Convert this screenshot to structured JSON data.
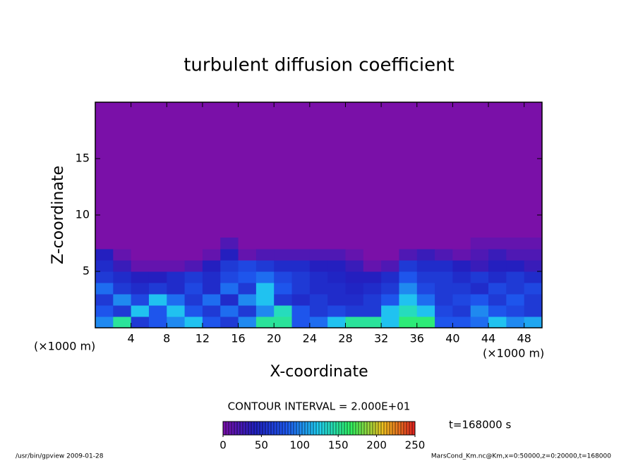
{
  "chart_data": {
    "type": "heatmap",
    "title": "turbulent diffusion coefficient",
    "x_label": "X-coordinate",
    "y_label": "Z-coordinate",
    "x_unit": "(×1000 m)",
    "xlim": [
      0,
      50
    ],
    "ylim": [
      0,
      20
    ],
    "xticks": [
      4,
      8,
      12,
      16,
      20,
      24,
      28,
      32,
      36,
      40,
      44,
      48
    ],
    "yticks": [
      5,
      10,
      15
    ],
    "x": [
      1,
      3,
      5,
      7,
      9,
      11,
      13,
      15,
      17,
      19,
      21,
      23,
      25,
      27,
      29,
      31,
      33,
      35,
      37,
      39,
      41,
      43,
      45,
      47,
      49
    ],
    "z": [
      0.5,
      1.5,
      2.5,
      3.5,
      4.5,
      5.5,
      6.5,
      7.5
    ],
    "values": [
      [
        100,
        150,
        60,
        80,
        100,
        120,
        80,
        60,
        100,
        150,
        150,
        80,
        90,
        120,
        150,
        150,
        120,
        160,
        160,
        80,
        80,
        90,
        120,
        100,
        110
      ],
      [
        80,
        60,
        120,
        80,
        120,
        80,
        60,
        90,
        60,
        100,
        140,
        80,
        60,
        70,
        60,
        60,
        120,
        140,
        120,
        70,
        60,
        100,
        80,
        70,
        60
      ],
      [
        60,
        100,
        70,
        120,
        90,
        60,
        90,
        50,
        100,
        120,
        60,
        50,
        60,
        50,
        50,
        60,
        80,
        120,
        90,
        60,
        70,
        80,
        60,
        80,
        60
      ],
      [
        90,
        60,
        50,
        60,
        50,
        70,
        50,
        90,
        60,
        120,
        80,
        60,
        50,
        50,
        45,
        50,
        60,
        100,
        70,
        60,
        60,
        50,
        70,
        60,
        70
      ],
      [
        60,
        50,
        40,
        40,
        50,
        60,
        50,
        70,
        80,
        90,
        70,
        60,
        50,
        45,
        40,
        40,
        50,
        80,
        60,
        60,
        50,
        60,
        50,
        60,
        50
      ],
      [
        50,
        30,
        10,
        10,
        10,
        20,
        40,
        60,
        70,
        60,
        50,
        50,
        40,
        40,
        30,
        10,
        20,
        60,
        50,
        50,
        40,
        30,
        40,
        40,
        30
      ],
      [
        40,
        10,
        0,
        0,
        0,
        0,
        10,
        40,
        10,
        20,
        20,
        20,
        20,
        20,
        10,
        0,
        0,
        20,
        30,
        20,
        10,
        20,
        30,
        20,
        20
      ],
      [
        0,
        0,
        0,
        0,
        0,
        0,
        0,
        20,
        0,
        0,
        0,
        0,
        0,
        0,
        0,
        0,
        0,
        0,
        0,
        0,
        0,
        10,
        10,
        10,
        10
      ]
    ],
    "colors": [
      "#7a10a8",
      "#2020c0",
      "#1e5af0",
      "#20d0f0",
      "#30f060",
      "#f0c020",
      "#e02020"
    ],
    "contour_interval": "CONTOUR INTERVAL = 2.000E+01",
    "colorbar_lim": [
      0,
      250
    ],
    "colorbar_ticks": [
      0,
      50,
      100,
      150,
      200,
      250
    ],
    "time_label": "t=168000 s",
    "footer_left": "/usr/bin/gpview   2009-01-28",
    "footer_right": "MarsCond_Km.nc@Km,x=0:50000,z=0:20000,t=168000"
  }
}
